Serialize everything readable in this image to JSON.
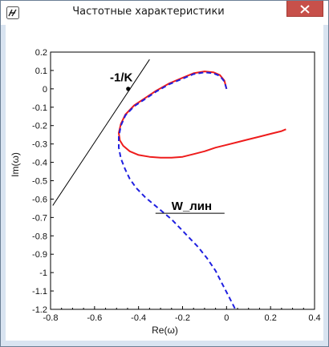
{
  "window": {
    "title": "Частотные характеристики",
    "close_label": "✕"
  },
  "colors": {
    "nonlinear_curve": "#ee1c1c",
    "linear_curve": "#2020e0",
    "tangent_line": "#000000",
    "close_button": "#c7504a"
  },
  "chart_data": {
    "type": "line",
    "xlabel": "Re(ω)",
    "ylabel": "Im(ω)",
    "xlim": [
      -0.8,
      0.4
    ],
    "ylim": [
      -1.2,
      0.2
    ],
    "xticks": [
      "-0.8",
      "-0.6",
      "-0.4",
      "-0.2",
      "0",
      "0.2",
      "0.4"
    ],
    "yticks": [
      "0.2",
      "0.1",
      "0",
      "-0.1",
      "-0.2",
      "-0.3",
      "-0.4",
      "-0.5",
      "-0.6",
      "-0.7",
      "-0.8",
      "-0.9",
      "-1",
      "-1.1",
      "-1.2"
    ],
    "grid": false,
    "annotations": [
      {
        "text": "-1/K",
        "x": -0.53,
        "y": 0.04
      },
      {
        "text": "W_лин",
        "x": -0.25,
        "y": -0.66
      }
    ],
    "tangent_line": [
      [
        -0.79,
        -0.635
      ],
      [
        -0.35,
        0.16
      ]
    ],
    "marker_point": [
      -0.447,
      0.0
    ],
    "series": [
      {
        "style": "solid",
        "x": [
          0.0,
          -0.01,
          -0.03,
          -0.06,
          -0.1,
          -0.15,
          -0.2,
          -0.26,
          -0.32,
          -0.37,
          -0.42,
          -0.46,
          -0.48,
          -0.49,
          -0.485,
          -0.47,
          -0.44,
          -0.4,
          -0.35,
          -0.3,
          -0.25,
          -0.2,
          -0.15,
          -0.1,
          -0.05,
          0.0,
          0.05,
          0.1,
          0.15,
          0.2,
          0.25,
          0.27
        ],
        "y": [
          0.0,
          0.045,
          0.075,
          0.09,
          0.095,
          0.085,
          0.06,
          0.03,
          -0.01,
          -0.05,
          -0.09,
          -0.14,
          -0.19,
          -0.24,
          -0.28,
          -0.31,
          -0.34,
          -0.36,
          -0.37,
          -0.375,
          -0.375,
          -0.37,
          -0.355,
          -0.34,
          -0.32,
          -0.305,
          -0.29,
          -0.275,
          -0.26,
          -0.245,
          -0.23,
          -0.22
        ]
      },
      {
        "style": "dashed",
        "x": [
          0.0,
          -0.01,
          -0.03,
          -0.06,
          -0.1,
          -0.15,
          -0.2,
          -0.26,
          -0.32,
          -0.37,
          -0.42,
          -0.46,
          -0.48,
          -0.49,
          -0.49,
          -0.48,
          -0.46,
          -0.44,
          -0.41,
          -0.37,
          -0.33,
          -0.29,
          -0.25,
          -0.21,
          -0.17,
          -0.13,
          -0.09,
          -0.05,
          -0.02,
          0.01,
          0.04
        ],
        "y": [
          0.0,
          0.04,
          0.07,
          0.085,
          0.09,
          0.08,
          0.055,
          0.025,
          -0.015,
          -0.055,
          -0.095,
          -0.145,
          -0.2,
          -0.26,
          -0.32,
          -0.38,
          -0.44,
          -0.49,
          -0.54,
          -0.59,
          -0.63,
          -0.67,
          -0.71,
          -0.76,
          -0.81,
          -0.86,
          -0.92,
          -0.99,
          -1.06,
          -1.13,
          -1.2
        ]
      }
    ]
  }
}
